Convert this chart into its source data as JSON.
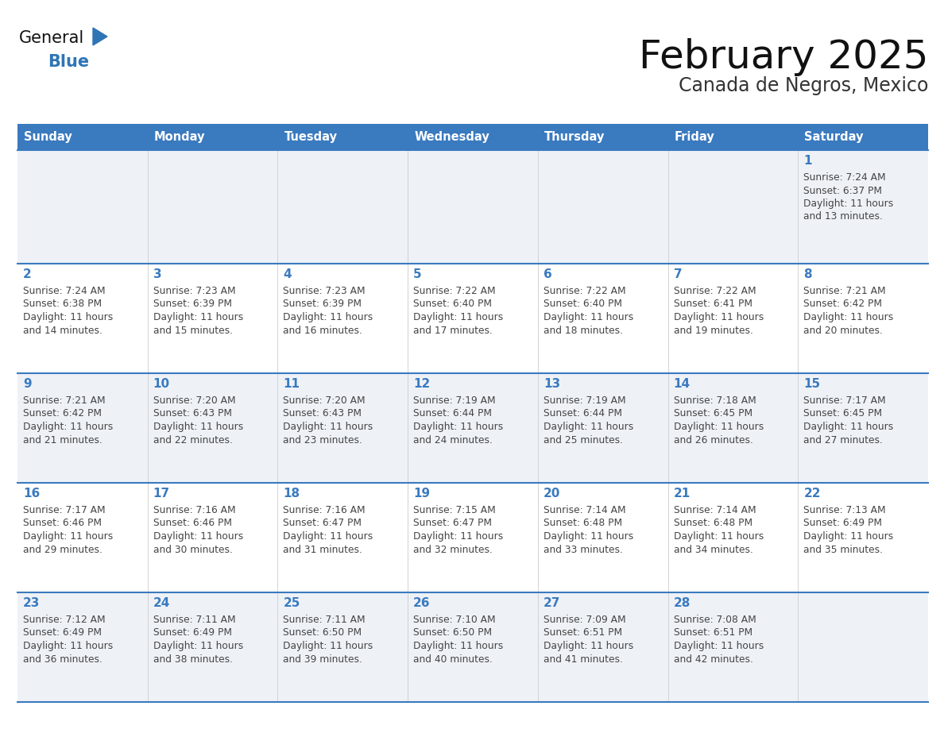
{
  "title": "February 2025",
  "subtitle": "Canada de Negros, Mexico",
  "header_bg": "#3a7abf",
  "header_text": "#ffffff",
  "weekdays": [
    "Sunday",
    "Monday",
    "Tuesday",
    "Wednesday",
    "Thursday",
    "Friday",
    "Saturday"
  ],
  "row1_bg": "#eef2f7",
  "row2_bg": "#ffffff",
  "day_number_color": "#3a7abf",
  "cell_text_color": "#444444",
  "grid_line_color": "#3a7abf",
  "title_color": "#111111",
  "subtitle_color": "#333333",
  "logo_general_color": "#111111",
  "logo_blue_color": "#2e75b6",
  "logo_triangle_color": "#2e75b6",
  "calendar": [
    [
      null,
      null,
      null,
      null,
      null,
      null,
      {
        "day": 1,
        "sunrise": "7:24 AM",
        "sunset": "6:37 PM",
        "daylight": "11 hours and 13 minutes."
      }
    ],
    [
      {
        "day": 2,
        "sunrise": "7:24 AM",
        "sunset": "6:38 PM",
        "daylight": "11 hours and 14 minutes."
      },
      {
        "day": 3,
        "sunrise": "7:23 AM",
        "sunset": "6:39 PM",
        "daylight": "11 hours and 15 minutes."
      },
      {
        "day": 4,
        "sunrise": "7:23 AM",
        "sunset": "6:39 PM",
        "daylight": "11 hours and 16 minutes."
      },
      {
        "day": 5,
        "sunrise": "7:22 AM",
        "sunset": "6:40 PM",
        "daylight": "11 hours and 17 minutes."
      },
      {
        "day": 6,
        "sunrise": "7:22 AM",
        "sunset": "6:40 PM",
        "daylight": "11 hours and 18 minutes."
      },
      {
        "day": 7,
        "sunrise": "7:22 AM",
        "sunset": "6:41 PM",
        "daylight": "11 hours and 19 minutes."
      },
      {
        "day": 8,
        "sunrise": "7:21 AM",
        "sunset": "6:42 PM",
        "daylight": "11 hours and 20 minutes."
      }
    ],
    [
      {
        "day": 9,
        "sunrise": "7:21 AM",
        "sunset": "6:42 PM",
        "daylight": "11 hours and 21 minutes."
      },
      {
        "day": 10,
        "sunrise": "7:20 AM",
        "sunset": "6:43 PM",
        "daylight": "11 hours and 22 minutes."
      },
      {
        "day": 11,
        "sunrise": "7:20 AM",
        "sunset": "6:43 PM",
        "daylight": "11 hours and 23 minutes."
      },
      {
        "day": 12,
        "sunrise": "7:19 AM",
        "sunset": "6:44 PM",
        "daylight": "11 hours and 24 minutes."
      },
      {
        "day": 13,
        "sunrise": "7:19 AM",
        "sunset": "6:44 PM",
        "daylight": "11 hours and 25 minutes."
      },
      {
        "day": 14,
        "sunrise": "7:18 AM",
        "sunset": "6:45 PM",
        "daylight": "11 hours and 26 minutes."
      },
      {
        "day": 15,
        "sunrise": "7:17 AM",
        "sunset": "6:45 PM",
        "daylight": "11 hours and 27 minutes."
      }
    ],
    [
      {
        "day": 16,
        "sunrise": "7:17 AM",
        "sunset": "6:46 PM",
        "daylight": "11 hours and 29 minutes."
      },
      {
        "day": 17,
        "sunrise": "7:16 AM",
        "sunset": "6:46 PM",
        "daylight": "11 hours and 30 minutes."
      },
      {
        "day": 18,
        "sunrise": "7:16 AM",
        "sunset": "6:47 PM",
        "daylight": "11 hours and 31 minutes."
      },
      {
        "day": 19,
        "sunrise": "7:15 AM",
        "sunset": "6:47 PM",
        "daylight": "11 hours and 32 minutes."
      },
      {
        "day": 20,
        "sunrise": "7:14 AM",
        "sunset": "6:48 PM",
        "daylight": "11 hours and 33 minutes."
      },
      {
        "day": 21,
        "sunrise": "7:14 AM",
        "sunset": "6:48 PM",
        "daylight": "11 hours and 34 minutes."
      },
      {
        "day": 22,
        "sunrise": "7:13 AM",
        "sunset": "6:49 PM",
        "daylight": "11 hours and 35 minutes."
      }
    ],
    [
      {
        "day": 23,
        "sunrise": "7:12 AM",
        "sunset": "6:49 PM",
        "daylight": "11 hours and 36 minutes."
      },
      {
        "day": 24,
        "sunrise": "7:11 AM",
        "sunset": "6:49 PM",
        "daylight": "11 hours and 38 minutes."
      },
      {
        "day": 25,
        "sunrise": "7:11 AM",
        "sunset": "6:50 PM",
        "daylight": "11 hours and 39 minutes."
      },
      {
        "day": 26,
        "sunrise": "7:10 AM",
        "sunset": "6:50 PM",
        "daylight": "11 hours and 40 minutes."
      },
      {
        "day": 27,
        "sunrise": "7:09 AM",
        "sunset": "6:51 PM",
        "daylight": "11 hours and 41 minutes."
      },
      {
        "day": 28,
        "sunrise": "7:08 AM",
        "sunset": "6:51 PM",
        "daylight": "11 hours and 42 minutes."
      },
      null
    ]
  ]
}
